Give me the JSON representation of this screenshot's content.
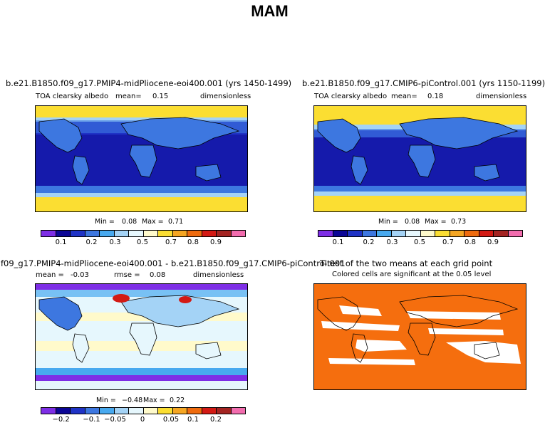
{
  "figure": {
    "title": "MAM"
  },
  "chart_data": [
    {
      "type": "heatmap",
      "title": "b.e21.B1850.f09_g17.PMIP4-midPliocene-eoi400.001 (yrs 1450-1499)",
      "variable": "TOA clearsky albedo",
      "mean_label": "mean=",
      "mean": "0.15",
      "units": "dimensionless",
      "min_label": "Min =",
      "min": "0.08",
      "max_label": "Max =",
      "max": "0.71",
      "colorbar_ticks": [
        "0.1",
        "0.2",
        "0.3",
        "0.5",
        "0.7",
        "0.8",
        "0.9"
      ]
    },
    {
      "type": "heatmap",
      "title": "b.e21.B1850.f09_g17.CMIP6-piControl.001 (yrs 1150-1199)",
      "variable": "TOA clearsky albedo",
      "mean_label": "mean=",
      "mean": "0.18",
      "units": "dimensionless",
      "min_label": "Min =",
      "min": "0.08",
      "max_label": "Max =",
      "max": "0.73",
      "colorbar_ticks": [
        "0.1",
        "0.2",
        "0.3",
        "0.5",
        "0.7",
        "0.8",
        "0.9"
      ]
    },
    {
      "type": "heatmap",
      "title": "f09_g17.PMIP4-midPliocene-eoi400.001 - b.e21.B1850.f09_g17.CMIP6-piControl.001",
      "mean_label": "mean =",
      "mean": "-0.03",
      "rmse_label": "rmse =",
      "rmse": "0.08",
      "units": "dimensionless",
      "min_label": "Min =",
      "min": "−0.48",
      "max_label": "Max =",
      "max": "0.22",
      "colorbar_ticks": [
        "−0.2",
        "−0.1",
        "−0.05",
        "0",
        "0.05",
        "0.1",
        "0.2"
      ]
    },
    {
      "type": "heatmap",
      "title": "T-test of the two means at each grid point",
      "subtitle": "Colored cells are significant at the 0.05 level"
    }
  ],
  "colors": {
    "abs_scale": [
      "#7e2ee6",
      "#0c0696",
      "#1f33c6",
      "#3d77e0",
      "#48a9ef",
      "#a4d3f6",
      "#e6f7fd",
      "#fffacb",
      "#fbde32",
      "#f5a623",
      "#ef6b0e",
      "#d31a14",
      "#a42422",
      "#f26cae"
    ],
    "diff_scale": [
      "#7e2ee6",
      "#0c0696",
      "#1f33c6",
      "#3d77e0",
      "#48a9ef",
      "#a4d3f6",
      "#e6f7fd",
      "#fffacb",
      "#fbde32",
      "#f5a623",
      "#ef6b0e",
      "#d31a14",
      "#a42422",
      "#f26cae"
    ],
    "ttest_fill": "#f56e0e"
  }
}
